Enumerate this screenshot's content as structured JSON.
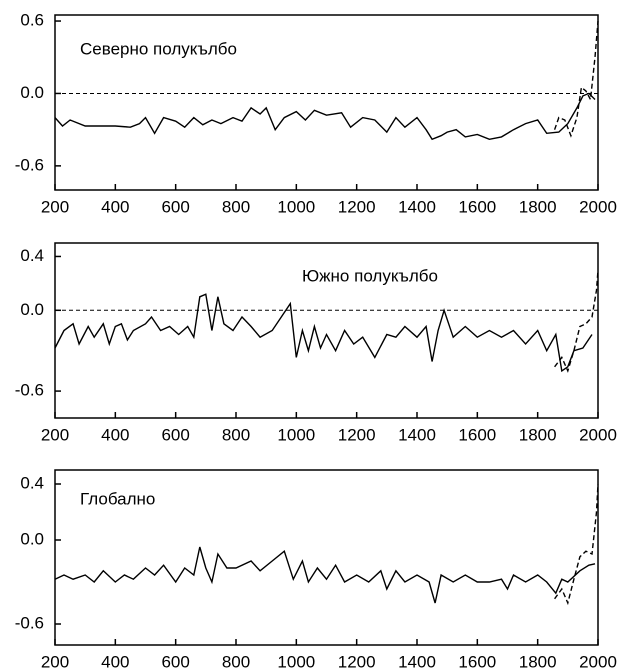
{
  "chart_data": [
    {
      "type": "line",
      "title": "Северно полукълбо",
      "xlim": [
        200,
        2000
      ],
      "ylim": [
        -0.8,
        0.65
      ],
      "xticks": [
        200,
        400,
        600,
        800,
        1000,
        1200,
        1400,
        1600,
        1800,
        2000
      ],
      "yticks": [
        0.6,
        {
          "value": 0,
          "label": "0.0"
        },
        -0.6
      ],
      "zero_line": true,
      "series": [
        {
          "color": "#000000",
          "dashed": false,
          "x": [
            200,
            225,
            250,
            300,
            400,
            450,
            480,
            500,
            530,
            560,
            600,
            630,
            660,
            690,
            720,
            750,
            790,
            820,
            850,
            880,
            900,
            930,
            960,
            1000,
            1030,
            1060,
            1100,
            1150,
            1180,
            1220,
            1260,
            1300,
            1330,
            1360,
            1400,
            1430,
            1450,
            1480,
            1500,
            1530,
            1560,
            1600,
            1640,
            1680,
            1720,
            1760,
            1800,
            1830,
            1870,
            1900,
            1930,
            1950,
            1970,
            1990
          ],
          "values": [
            -0.2,
            -0.27,
            -0.22,
            -0.27,
            -0.27,
            -0.28,
            -0.25,
            -0.2,
            -0.33,
            -0.2,
            -0.23,
            -0.28,
            -0.2,
            -0.26,
            -0.22,
            -0.25,
            -0.2,
            -0.23,
            -0.12,
            -0.17,
            -0.12,
            -0.3,
            -0.2,
            -0.15,
            -0.22,
            -0.14,
            -0.18,
            -0.16,
            -0.28,
            -0.2,
            -0.22,
            -0.32,
            -0.2,
            -0.28,
            -0.2,
            -0.3,
            -0.38,
            -0.35,
            -0.32,
            -0.3,
            -0.36,
            -0.34,
            -0.38,
            -0.36,
            -0.3,
            -0.25,
            -0.22,
            -0.33,
            -0.32,
            -0.25,
            -0.12,
            -0.02,
            0.0,
            -0.05
          ]
        },
        {
          "color": "#000000",
          "dashed": true,
          "x": [
            1856,
            1870,
            1890,
            1910,
            1930,
            1945,
            1960,
            1975,
            1990,
            2000
          ],
          "values": [
            -0.3,
            -0.2,
            -0.22,
            -0.35,
            -0.2,
            0.05,
            0.02,
            -0.05,
            0.3,
            0.6
          ]
        }
      ]
    },
    {
      "type": "line",
      "title": "Южно полукълбо",
      "xlim": [
        200,
        2000
      ],
      "ylim": [
        -0.8,
        0.5
      ],
      "xticks": [
        200,
        400,
        600,
        800,
        1000,
        1200,
        1400,
        1600,
        1800,
        2000
      ],
      "yticks": [
        0.4,
        {
          "value": 0,
          "label": "0.0"
        },
        -0.6
      ],
      "zero_line": true,
      "series": [
        {
          "color": "#000000",
          "dashed": false,
          "x": [
            200,
            230,
            260,
            280,
            310,
            330,
            360,
            380,
            400,
            420,
            440,
            460,
            500,
            520,
            550,
            580,
            610,
            640,
            660,
            680,
            700,
            720,
            740,
            760,
            790,
            820,
            850,
            880,
            920,
            950,
            980,
            1000,
            1020,
            1040,
            1060,
            1080,
            1100,
            1130,
            1160,
            1190,
            1220,
            1260,
            1300,
            1330,
            1360,
            1400,
            1430,
            1450,
            1470,
            1490,
            1520,
            1560,
            1600,
            1640,
            1680,
            1720,
            1760,
            1800,
            1830,
            1860,
            1880,
            1900,
            1920,
            1950,
            1980
          ],
          "values": [
            -0.28,
            -0.15,
            -0.1,
            -0.25,
            -0.12,
            -0.2,
            -0.1,
            -0.25,
            -0.12,
            -0.1,
            -0.22,
            -0.15,
            -0.1,
            -0.05,
            -0.15,
            -0.12,
            -0.18,
            -0.12,
            -0.2,
            0.1,
            0.12,
            -0.15,
            0.1,
            -0.1,
            -0.15,
            -0.05,
            -0.12,
            -0.2,
            -0.15,
            -0.05,
            0.05,
            -0.35,
            -0.15,
            -0.3,
            -0.12,
            -0.28,
            -0.18,
            -0.3,
            -0.15,
            -0.25,
            -0.2,
            -0.35,
            -0.18,
            -0.2,
            -0.12,
            -0.2,
            -0.12,
            -0.38,
            -0.15,
            0.0,
            -0.2,
            -0.12,
            -0.2,
            -0.15,
            -0.2,
            -0.15,
            -0.25,
            -0.15,
            -0.3,
            -0.18,
            -0.45,
            -0.42,
            -0.3,
            -0.28,
            -0.18
          ]
        },
        {
          "color": "#000000",
          "dashed": true,
          "x": [
            1856,
            1880,
            1900,
            1920,
            1940,
            1960,
            1980,
            1995,
            2000
          ],
          "values": [
            -0.42,
            -0.35,
            -0.45,
            -0.3,
            -0.12,
            -0.1,
            -0.05,
            0.15,
            0.3
          ]
        }
      ]
    },
    {
      "type": "line",
      "title": "Глобално",
      "xlim": [
        200,
        2000
      ],
      "ylim": [
        -0.75,
        0.5
      ],
      "xticks": [
        200,
        400,
        600,
        800,
        1000,
        1200,
        1400,
        1600,
        1800,
        2000
      ],
      "yticks": [
        0.4,
        {
          "value": 0,
          "label": "0.0"
        },
        -0.6
      ],
      "zero_line": false,
      "series": [
        {
          "color": "#000000",
          "dashed": false,
          "x": [
            200,
            230,
            260,
            300,
            330,
            360,
            400,
            430,
            460,
            500,
            530,
            560,
            600,
            630,
            660,
            680,
            700,
            720,
            740,
            770,
            800,
            850,
            880,
            920,
            960,
            990,
            1020,
            1040,
            1070,
            1100,
            1130,
            1160,
            1200,
            1240,
            1280,
            1300,
            1330,
            1360,
            1400,
            1440,
            1460,
            1480,
            1520,
            1560,
            1600,
            1640,
            1680,
            1700,
            1720,
            1760,
            1800,
            1830,
            1860,
            1880,
            1900,
            1940,
            1970,
            1990
          ],
          "values": [
            -0.28,
            -0.25,
            -0.28,
            -0.25,
            -0.3,
            -0.22,
            -0.3,
            -0.25,
            -0.28,
            -0.2,
            -0.25,
            -0.18,
            -0.3,
            -0.2,
            -0.25,
            -0.05,
            -0.2,
            -0.3,
            -0.1,
            -0.2,
            -0.2,
            -0.15,
            -0.22,
            -0.15,
            -0.08,
            -0.28,
            -0.15,
            -0.3,
            -0.2,
            -0.28,
            -0.18,
            -0.3,
            -0.25,
            -0.3,
            -0.22,
            -0.35,
            -0.22,
            -0.3,
            -0.25,
            -0.3,
            -0.45,
            -0.25,
            -0.3,
            -0.25,
            -0.3,
            -0.3,
            -0.28,
            -0.35,
            -0.25,
            -0.3,
            -0.25,
            -0.3,
            -0.38,
            -0.28,
            -0.3,
            -0.22,
            -0.18,
            -0.17
          ]
        },
        {
          "color": "#000000",
          "dashed": true,
          "x": [
            1856,
            1880,
            1900,
            1920,
            1940,
            1960,
            1980,
            1995,
            2000
          ],
          "values": [
            -0.42,
            -0.35,
            -0.45,
            -0.28,
            -0.12,
            -0.08,
            -0.1,
            0.2,
            0.4
          ]
        }
      ]
    }
  ]
}
